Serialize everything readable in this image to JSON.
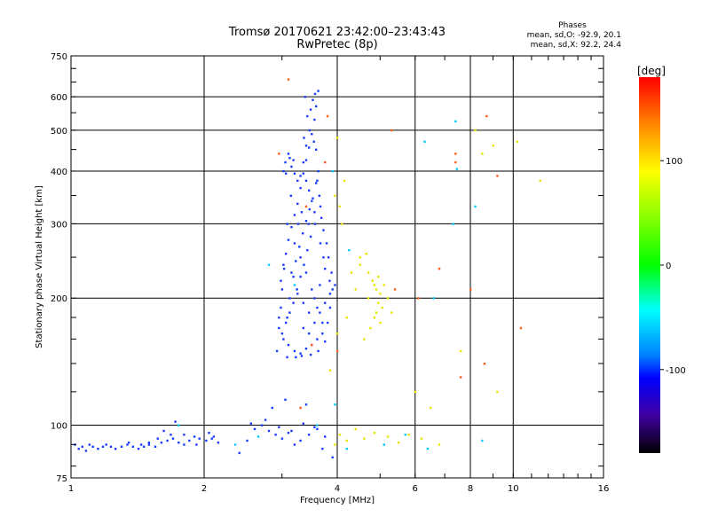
{
  "chart_data": {
    "type": "scatter",
    "title": "Tromsø 20170621 23:42:00–23:43:43",
    "subtitle": "RwPretec (8p)",
    "xlabel": "Frequency [MHz]",
    "ylabel": "Stationary phase Virtual Height [km]",
    "x_scale": "log2",
    "y_scale": "log",
    "xlim": [
      1,
      16
    ],
    "ylim": [
      75,
      750
    ],
    "x_ticks": [
      1,
      2,
      4,
      6,
      8,
      10,
      16
    ],
    "y_ticks": [
      75,
      100,
      200,
      300,
      400,
      500,
      600,
      750
    ],
    "x_grid": [
      2,
      4,
      6,
      8,
      10
    ],
    "y_grid": [
      100,
      200,
      300,
      400,
      500,
      600
    ],
    "stats": {
      "heading": "Phases",
      "line1": "mean, sd,O:  -92.9, 20.1",
      "line2": "mean, sd,X:  92.2, 24.4"
    },
    "colorbar": {
      "label": "[deg]",
      "range": [
        -180,
        180
      ],
      "ticks": [
        {
          "value": 100,
          "label": "100"
        },
        {
          "value": 0,
          "label": "0"
        },
        {
          "value": -100,
          "label": "-100"
        }
      ]
    },
    "series": [
      {
        "points": [
          [
            1.02,
            90
          ],
          [
            1.04,
            88
          ],
          [
            1.06,
            89
          ],
          [
            1.08,
            87
          ],
          [
            1.1,
            90
          ],
          [
            1.12,
            89
          ],
          [
            1.15,
            88
          ],
          [
            1.18,
            89
          ],
          [
            1.2,
            90
          ],
          [
            1.23,
            89
          ],
          [
            1.26,
            88
          ],
          [
            1.3,
            89
          ],
          [
            1.34,
            90
          ],
          [
            1.38,
            89
          ],
          [
            1.42,
            88
          ],
          [
            1.46,
            89
          ],
          [
            1.5,
            90
          ],
          [
            1.55,
            89
          ],
          [
            1.6,
            91
          ],
          [
            1.65,
            92
          ],
          [
            1.7,
            93
          ],
          [
            1.75,
            91
          ],
          [
            1.8,
            90
          ],
          [
            1.85,
            92
          ],
          [
            1.9,
            94
          ],
          [
            1.95,
            93
          ],
          [
            2.02,
            92
          ],
          [
            2.08,
            93
          ],
          [
            2.15,
            91
          ],
          [
            1.62,
            97
          ],
          [
            1.72,
            102
          ],
          [
            1.8,
            95
          ],
          [
            1.92,
            90
          ],
          [
            2.1,
            94
          ],
          [
            1.5,
            91
          ],
          [
            1.57,
            93
          ],
          [
            1.68,
            95
          ],
          [
            2.05,
            96
          ],
          [
            1.44,
            90
          ],
          [
            1.35,
            91
          ],
          [
            2.4,
            86
          ],
          [
            2.5,
            92
          ],
          [
            2.6,
            98
          ],
          [
            2.7,
            100
          ],
          [
            2.8,
            97
          ],
          [
            2.9,
            95
          ],
          [
            3.0,
            93
          ],
          [
            3.1,
            96
          ],
          [
            3.2,
            90
          ],
          [
            3.3,
            92
          ],
          [
            3.45,
            95
          ],
          [
            3.6,
            98
          ],
          [
            3.75,
            94
          ],
          [
            2.55,
            101
          ],
          [
            2.75,
            103
          ],
          [
            2.95,
            99
          ],
          [
            3.15,
            97
          ],
          [
            3.35,
            101
          ],
          [
            3.55,
            99
          ],
          [
            2.85,
            110
          ],
          [
            3.05,
            115
          ],
          [
            3.4,
            112
          ],
          [
            3.7,
            88
          ],
          [
            3.9,
            84
          ],
          [
            2.92,
            150
          ],
          [
            2.95,
            170
          ],
          [
            2.98,
            190
          ],
          [
            3.0,
            210
          ],
          [
            3.03,
            235
          ],
          [
            3.06,
            255
          ],
          [
            3.1,
            275
          ],
          [
            3.15,
            295
          ],
          [
            3.2,
            315
          ],
          [
            3.25,
            335
          ],
          [
            3.3,
            365
          ],
          [
            3.35,
            395
          ],
          [
            3.4,
            425
          ],
          [
            3.45,
            455
          ],
          [
            3.5,
            490
          ],
          [
            3.55,
            530
          ],
          [
            3.58,
            570
          ],
          [
            3.62,
            620
          ],
          [
            3.02,
            160
          ],
          [
            3.08,
            180
          ],
          [
            3.12,
            200
          ],
          [
            3.18,
            225
          ],
          [
            3.22,
            245
          ],
          [
            3.28,
            265
          ],
          [
            3.34,
            285
          ],
          [
            3.4,
            305
          ],
          [
            3.46,
            325
          ],
          [
            3.52,
            345
          ],
          [
            3.58,
            375
          ],
          [
            3.62,
            400
          ],
          [
            3.2,
            150
          ],
          [
            3.3,
            148
          ],
          [
            3.4,
            152
          ],
          [
            3.5,
            155
          ],
          [
            3.6,
            160
          ],
          [
            3.7,
            165
          ],
          [
            3.8,
            175
          ],
          [
            3.85,
            190
          ],
          [
            3.9,
            210
          ],
          [
            3.88,
            230
          ],
          [
            3.82,
            250
          ],
          [
            3.78,
            270
          ],
          [
            3.72,
            290
          ],
          [
            3.68,
            310
          ],
          [
            3.66,
            330
          ],
          [
            3.64,
            350
          ],
          [
            3.6,
            380
          ],
          [
            3.05,
            420
          ],
          [
            3.1,
            440
          ],
          [
            3.15,
            410
          ],
          [
            3.2,
            395
          ],
          [
            3.25,
            380
          ],
          [
            3.3,
            390
          ],
          [
            3.35,
            420
          ],
          [
            3.4,
            380
          ],
          [
            3.45,
            360
          ],
          [
            3.5,
            340
          ],
          [
            3.55,
            320
          ],
          [
            3.48,
            280
          ],
          [
            3.42,
            260
          ],
          [
            3.36,
            240
          ],
          [
            3.3,
            225
          ],
          [
            3.24,
            210
          ],
          [
            3.18,
            195
          ],
          [
            3.12,
            185
          ],
          [
            3.06,
            175
          ],
          [
            3.0,
            165
          ],
          [
            3.1,
            155
          ],
          [
            3.35,
            170
          ],
          [
            3.45,
            185
          ],
          [
            3.55,
            200
          ],
          [
            3.65,
            215
          ],
          [
            3.75,
            235
          ],
          [
            3.7,
            175
          ],
          [
            3.6,
            190
          ],
          [
            3.5,
            210
          ],
          [
            3.4,
            230
          ],
          [
            3.3,
            250
          ],
          [
            3.2,
            270
          ],
          [
            3.15,
            230
          ],
          [
            3.25,
            205
          ],
          [
            3.35,
            195
          ],
          [
            3.45,
            165
          ],
          [
            3.55,
            175
          ],
          [
            3.65,
            185
          ],
          [
            3.75,
            195
          ],
          [
            3.85,
            205
          ],
          [
            3.95,
            215
          ],
          [
            3.38,
            600
          ],
          [
            3.52,
            590
          ],
          [
            3.56,
            610
          ],
          [
            3.48,
            560
          ],
          [
            3.42,
            540
          ],
          [
            3.46,
            500
          ],
          [
            3.54,
            470
          ],
          [
            3.58,
            450
          ],
          [
            3.36,
            480
          ],
          [
            3.4,
            460
          ],
          [
            3.02,
            400
          ],
          [
            3.06,
            395
          ],
          [
            3.12,
            430
          ],
          [
            3.18,
            425
          ],
          [
            3.08,
            145
          ],
          [
            3.22,
            145
          ],
          [
            3.32,
            146
          ],
          [
            3.48,
            147
          ],
          [
            3.62,
            150
          ],
          [
            3.75,
            158
          ],
          [
            2.95,
            180
          ],
          [
            2.98,
            220
          ],
          [
            3.02,
            240
          ],
          [
            3.08,
            300
          ],
          [
            3.14,
            350
          ],
          [
            3.26,
            300
          ],
          [
            3.32,
            320
          ],
          [
            3.44,
            300
          ],
          [
            3.56,
            300
          ],
          [
            3.66,
            270
          ],
          [
            3.72,
            250
          ],
          [
            3.84,
            220
          ]
        ]
      },
      {
        "points": [
          [
            3.95,
            90
          ],
          [
            4.05,
            95
          ],
          [
            4.2,
            92
          ],
          [
            4.4,
            98
          ],
          [
            4.6,
            93
          ],
          [
            4.85,
            96
          ],
          [
            5.2,
            94
          ],
          [
            5.5,
            91
          ],
          [
            6.2,
            93
          ],
          [
            6.8,
            90
          ],
          [
            4.5,
            240
          ],
          [
            4.7,
            230
          ],
          [
            4.8,
            220
          ],
          [
            4.9,
            210
          ],
          [
            5.0,
            205
          ],
          [
            4.95,
            195
          ],
          [
            5.05,
            190
          ],
          [
            4.9,
            185
          ],
          [
            4.85,
            180
          ],
          [
            5.0,
            175
          ],
          [
            4.75,
            170
          ],
          [
            4.7,
            200
          ],
          [
            4.85,
            215
          ],
          [
            4.95,
            225
          ],
          [
            5.1,
            215
          ],
          [
            4.6,
            160
          ],
          [
            4.4,
            210
          ],
          [
            4.3,
            230
          ],
          [
            4.2,
            180
          ],
          [
            5.2,
            200
          ],
          [
            4.1,
            300
          ],
          [
            4.05,
            330
          ],
          [
            4.0,
            480
          ],
          [
            3.95,
            350
          ],
          [
            4.15,
            380
          ],
          [
            4.5,
            250
          ],
          [
            4.65,
            255
          ],
          [
            5.3,
            185
          ],
          [
            3.85,
            135
          ],
          [
            4.0,
            165
          ],
          [
            6.0,
            120
          ],
          [
            6.5,
            110
          ],
          [
            8.2,
            500
          ],
          [
            9.0,
            460
          ],
          [
            10.2,
            470
          ],
          [
            11.5,
            380
          ],
          [
            7.6,
            150
          ],
          [
            8.5,
            440
          ],
          [
            9.2,
            120
          ],
          [
            5.8,
            95
          ]
        ]
      },
      {
        "points": [
          [
            5.3,
            500
          ],
          [
            6.8,
            235
          ],
          [
            7.4,
            420
          ],
          [
            7.6,
            130
          ],
          [
            8.0,
            210
          ],
          [
            8.6,
            140
          ],
          [
            8.7,
            540
          ],
          [
            9.2,
            390
          ],
          [
            10.4,
            170
          ],
          [
            5.4,
            210
          ],
          [
            4.0,
            150
          ],
          [
            3.8,
            540
          ],
          [
            3.1,
            660
          ],
          [
            3.3,
            110
          ],
          [
            3.5,
            155
          ],
          [
            7.4,
            440
          ],
          [
            2.95,
            440
          ],
          [
            3.4,
            330
          ],
          [
            3.75,
            420
          ],
          [
            6.1,
            200
          ]
        ]
      },
      {
        "points": [
          [
            6.3,
            470
          ],
          [
            7.4,
            525
          ],
          [
            7.3,
            300
          ],
          [
            8.5,
            92
          ],
          [
            8.2,
            330
          ],
          [
            6.6,
            200
          ],
          [
            7.45,
            405
          ],
          [
            3.9,
            400
          ],
          [
            2.8,
            240
          ],
          [
            3.2,
            215
          ],
          [
            5.7,
            95
          ],
          [
            5.1,
            90
          ],
          [
            4.2,
            88
          ],
          [
            6.4,
            88
          ],
          [
            1.75,
            100
          ],
          [
            2.35,
            90
          ],
          [
            2.65,
            94
          ],
          [
            3.6,
            100
          ],
          [
            3.95,
            112
          ],
          [
            4.25,
            260
          ]
        ]
      }
    ]
  }
}
